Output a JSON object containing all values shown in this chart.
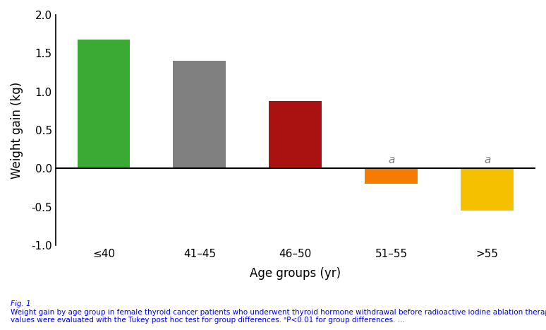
{
  "categories": [
    "≤40",
    "41–45",
    "46–50",
    "51–55",
    ">55"
  ],
  "values": [
    1.68,
    1.4,
    0.88,
    -0.2,
    -0.55
  ],
  "bar_colors": [
    "#3aaa35",
    "#808080",
    "#aa1111",
    "#f57c00",
    "#f5c000"
  ],
  "annotations": [
    "",
    "",
    "",
    "a",
    "a"
  ],
  "xlabel": "Age groups (yr)",
  "ylabel": "Weight gain (kg)",
  "ylim": [
    -1.0,
    2.0
  ],
  "yticks": [
    -1.0,
    -0.5,
    0.0,
    0.5,
    1.0,
    1.5,
    2.0
  ],
  "bar_width": 0.55,
  "annotation_fontsize": 11,
  "axis_fontsize": 12,
  "tick_fontsize": 11,
  "caption_title": "Fig. 1",
  "caption_text": "Weight gain by age group in female thyroid cancer patients who underwent thyroid hormone withdrawal before radioactive iodine ablation therapy. The\nvalues were evaluated with the Tukey post hoc test for group differences. ᵃP<0.01 for group differences. ...",
  "caption_fontsize": 7.5
}
